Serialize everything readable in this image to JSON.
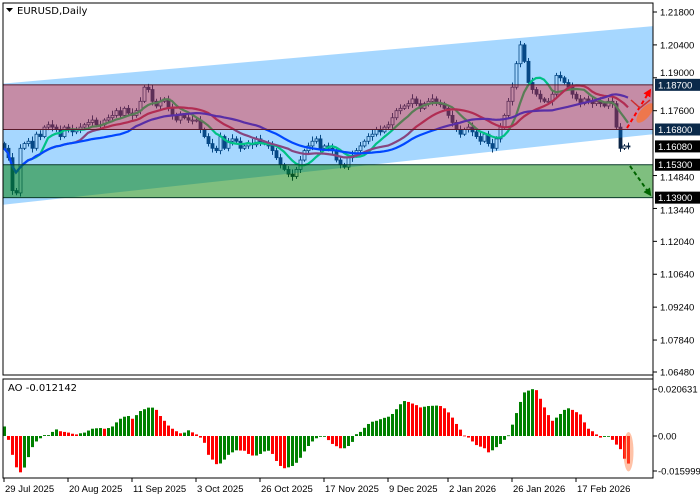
{
  "header": {
    "symbol_title": "EURUSD,Daily"
  },
  "indicator": {
    "label": "AO -0.012142"
  },
  "colors": {
    "candle": "#0b2545",
    "ma_fast": "#00dd44",
    "ma_mid": "#d0203c",
    "ma_slow": "#0022ff",
    "channel": "rgba(0,140,255,0.35)",
    "resistance_zone": "rgba(255,0,0,0.35)",
    "support_zone": "rgba(0,128,0,0.5)",
    "ao_up": "#008000",
    "ao_down": "#ff0000",
    "highlight_label_bg": "#0b2a4a",
    "price_label_bg": "#000000"
  },
  "chart_data": [
    {
      "type": "candlestick",
      "symbol": "EURUSD",
      "timeframe": "Daily",
      "ylim": [
        1.0648,
        1.218
      ],
      "y_ticks": [
        "1.21800",
        "1.20400",
        "1.19000",
        "1.17600",
        "1.14840",
        "1.13440",
        "1.12040",
        "1.10640",
        "1.09240",
        "1.07840",
        "1.06480"
      ],
      "x_ticks": [
        {
          "label": "29 Jul 2025",
          "bar": 0
        },
        {
          "label": "20 Aug 2025",
          "bar": 16
        },
        {
          "label": "11 Sep 2025",
          "bar": 32
        },
        {
          "label": "3 Oct 2025",
          "bar": 48
        },
        {
          "label": "26 Oct 2025",
          "bar": 64
        },
        {
          "label": "17 Nov 2025",
          "bar": 80
        },
        {
          "label": "9 Dec 2025",
          "bar": 96
        },
        {
          "label": "2 Jan 2026",
          "bar": 111
        },
        {
          "label": "26 Jan 2026",
          "bar": 127
        },
        {
          "label": "17 Feb 2026",
          "bar": 143
        }
      ],
      "closes": [
        1.16,
        1.156,
        1.142,
        1.141,
        1.16,
        1.162,
        1.163,
        1.16,
        1.166,
        1.165,
        1.169,
        1.17,
        1.169,
        1.168,
        1.165,
        1.169,
        1.168,
        1.167,
        1.168,
        1.169,
        1.17,
        1.171,
        1.172,
        1.17,
        1.17,
        1.172,
        1.173,
        1.174,
        1.176,
        1.174,
        1.177,
        1.175,
        1.174,
        1.176,
        1.18,
        1.186,
        1.185,
        1.18,
        1.178,
        1.18,
        1.181,
        1.177,
        1.174,
        1.172,
        1.174,
        1.173,
        1.172,
        1.172,
        1.172,
        1.168,
        1.165,
        1.162,
        1.16,
        1.159,
        1.165,
        1.16,
        1.163,
        1.164,
        1.163,
        1.16,
        1.161,
        1.162,
        1.1615,
        1.164,
        1.1625,
        1.162,
        1.161,
        1.159,
        1.156,
        1.153,
        1.151,
        1.149,
        1.148,
        1.151,
        1.155,
        1.159,
        1.161,
        1.163,
        1.164,
        1.16,
        1.161,
        1.16,
        1.159,
        1.155,
        1.153,
        1.152,
        1.156,
        1.157,
        1.159,
        1.161,
        1.163,
        1.165,
        1.166,
        1.168,
        1.167,
        1.169,
        1.17,
        1.173,
        1.176,
        1.177,
        1.178,
        1.179,
        1.181,
        1.179,
        1.177,
        1.179,
        1.18,
        1.181,
        1.179,
        1.179,
        1.177,
        1.174,
        1.171,
        1.168,
        1.166,
        1.168,
        1.169,
        1.167,
        1.165,
        1.163,
        1.166,
        1.162,
        1.16,
        1.164,
        1.169,
        1.174,
        1.18,
        1.186,
        1.196,
        1.204,
        1.197,
        1.188,
        1.185,
        1.183,
        1.181,
        1.18,
        1.18,
        1.183,
        1.191,
        1.19,
        1.188,
        1.186,
        1.183,
        1.181,
        1.179,
        1.181,
        1.18,
        1.179,
        1.18,
        1.179,
        1.178,
        1.18,
        1.179,
        1.169,
        1.16,
        1.161,
        1.1608
      ],
      "price_labels": [
        {
          "value": "1.18700",
          "style": "level"
        },
        {
          "value": "1.16800",
          "style": "level"
        },
        {
          "value": "1.16080",
          "style": "current"
        },
        {
          "value": "1.15300",
          "style": "level-black"
        },
        {
          "value": "1.13900",
          "style": "level-black"
        }
      ],
      "resistance_zone": [
        1.168,
        1.187
      ],
      "support_zone": [
        1.139,
        1.153
      ],
      "channel": {
        "upper": [
          1.1875,
          1.212
        ],
        "lower": [
          1.136,
          1.166
        ]
      },
      "forecast": {
        "up_target": 1.187,
        "down_target": 1.139
      }
    },
    {
      "type": "bar",
      "name": "AO",
      "ylim": [
        -0.015999,
        0.020631
      ],
      "y_ticks": [
        "0.020631",
        "0.00",
        "-0.015999"
      ],
      "values": [
        0.0042,
        -0.0017,
        -0.0083,
        -0.0138,
        -0.016,
        -0.0139,
        -0.0093,
        -0.0049,
        -0.0024,
        -0.001,
        0.0004,
        0.0004,
        0.0018,
        0.0029,
        0.0021,
        0.0018,
        0.0015,
        0.001,
        0.0007,
        0.0012,
        0.0015,
        0.0024,
        0.0032,
        0.0034,
        0.0035,
        0.0032,
        0.0035,
        0.0042,
        0.006,
        0.0076,
        0.0085,
        0.0088,
        0.0076,
        0.0092,
        0.011,
        0.0118,
        0.0125,
        0.0125,
        0.0115,
        0.0088,
        0.0067,
        0.0046,
        0.0032,
        0.0021,
        0.0012,
        0.0015,
        0.0025,
        0.0016,
        0.0007,
        -0.0007,
        -0.003,
        -0.0083,
        -0.0104,
        -0.0124,
        -0.0121,
        -0.0104,
        -0.0083,
        -0.0072,
        -0.0063,
        -0.0064,
        -0.0065,
        -0.0079,
        -0.0086,
        -0.0086,
        -0.0079,
        -0.0068,
        -0.0065,
        -0.0079,
        -0.011,
        -0.0132,
        -0.0142,
        -0.0138,
        -0.0132,
        -0.0118,
        -0.0096,
        -0.0068,
        -0.0044,
        -0.0024,
        -0.001,
        -0.0003,
        -0.0003,
        -0.0018,
        -0.0035,
        -0.0045,
        -0.0054,
        -0.0054,
        -0.0044,
        -0.0026,
        0.0008,
        0.0018,
        0.0036,
        0.0053,
        0.0063,
        0.0067,
        0.0074,
        0.008,
        0.0085,
        0.0097,
        0.0118,
        0.014,
        0.0154,
        0.015,
        0.0143,
        0.0136,
        0.0126,
        0.0129,
        0.0132,
        0.0133,
        0.0134,
        0.0132,
        0.0122,
        0.0104,
        0.0081,
        0.0053,
        0.0028,
        0.0002,
        -0.0007,
        -0.0024,
        -0.004,
        -0.0047,
        -0.0054,
        -0.0072,
        -0.0063,
        -0.0049,
        -0.0035,
        -0.0017,
        0.0003,
        0.005,
        0.0101,
        0.015,
        0.0192,
        0.02,
        0.020631,
        0.0202,
        0.0164,
        0.0126,
        0.0092,
        0.0067,
        0.0081,
        0.0097,
        0.0115,
        0.0122,
        0.0115,
        0.0105,
        0.0095,
        0.006,
        0.0032,
        0.0021,
        0.0007,
        -0.0007,
        -0.0004,
        -0.0003,
        -0.0017,
        -0.0038,
        -0.0058,
        -0.01,
        -0.012142
      ]
    }
  ]
}
